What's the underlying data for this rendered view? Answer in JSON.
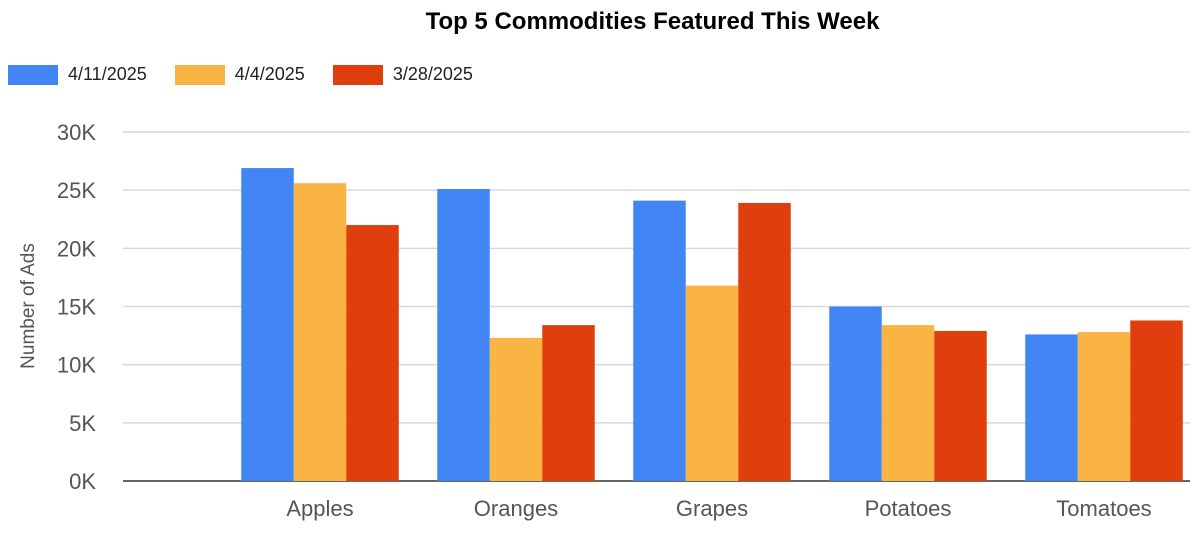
{
  "chart_data": {
    "type": "bar",
    "title": "Top 5 Commodities Featured This Week",
    "xlabel": "",
    "ylabel": "Number of Ads",
    "ylim": [
      0,
      30000
    ],
    "yticks": [
      0,
      5000,
      10000,
      15000,
      20000,
      25000,
      30000
    ],
    "ytick_labels": [
      "0K",
      "5K",
      "10K",
      "15K",
      "20K",
      "25K",
      "30K"
    ],
    "grid": true,
    "legend_position": "top-left",
    "categories": [
      "Apples",
      "Oranges",
      "Grapes",
      "Potatoes",
      "Tomatoes"
    ],
    "series": [
      {
        "name": "4/11/2025",
        "color": "#4285f4",
        "values": [
          26900,
          25100,
          24100,
          15000,
          12600
        ]
      },
      {
        "name": "4/4/2025",
        "color": "#fab444",
        "values": [
          25600,
          12300,
          16800,
          13400,
          12800
        ]
      },
      {
        "name": "3/28/2025",
        "color": "#df3f0c",
        "values": [
          22000,
          13400,
          23900,
          12900,
          13800
        ]
      }
    ]
  }
}
